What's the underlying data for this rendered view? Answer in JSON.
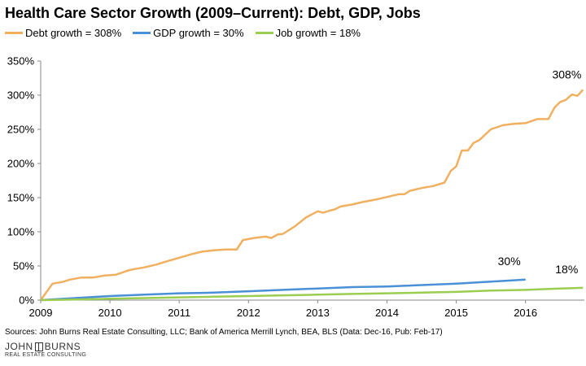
{
  "chart_data": {
    "type": "line",
    "title": "Health Care Sector Growth (2009–Current): Debt, GDP, Jobs",
    "xlabel": "",
    "ylabel": "",
    "x_ticks": [
      "2009",
      "2010",
      "2011",
      "2012",
      "2013",
      "2014",
      "2015",
      "2016"
    ],
    "y_ticks": [
      "0%",
      "50%",
      "100%",
      "150%",
      "200%",
      "250%",
      "300%",
      "350%"
    ],
    "xlim": [
      2009,
      2016.85
    ],
    "ylim": [
      0,
      350
    ],
    "legend_position": "top-left",
    "grid": false,
    "series": [
      {
        "name": "Debt growth = 308%",
        "color": "#F0B060",
        "end_label": "308%",
        "x": [
          2009,
          2009.17,
          2009.33,
          2009.42,
          2009.58,
          2009.75,
          2009.92,
          2010.08,
          2010.25,
          2010.33,
          2010.5,
          2010.67,
          2010.83,
          2011,
          2011.17,
          2011.33,
          2011.5,
          2011.67,
          2011.83,
          2011.92,
          2012.08,
          2012.25,
          2012.33,
          2012.42,
          2012.5,
          2012.67,
          2012.83,
          2013,
          2013.08,
          2013.17,
          2013.25,
          2013.33,
          2013.5,
          2013.67,
          2013.83,
          2014,
          2014.17,
          2014.25,
          2014.33,
          2014.5,
          2014.67,
          2014.83,
          2014.92,
          2015,
          2015.08,
          2015.17,
          2015.25,
          2015.33,
          2015.5,
          2015.67,
          2015.83,
          2016,
          2016.17,
          2016.33,
          2016.42,
          2016.5,
          2016.58,
          2016.67,
          2016.75,
          2016.83
        ],
        "values": [
          0,
          24,
          27,
          30,
          33,
          33,
          36,
          37,
          43,
          45,
          48,
          52,
          57,
          62,
          67,
          71,
          73,
          74,
          74,
          88,
          91,
          93,
          91,
          96,
          97,
          108,
          121,
          130,
          128,
          131,
          133,
          137,
          140,
          144,
          147,
          151,
          155,
          155,
          160,
          164,
          167,
          172,
          189,
          196,
          219,
          219,
          230,
          234,
          250,
          256,
          258,
          259,
          265,
          265,
          282,
          290,
          293,
          301,
          299,
          308
        ]
      },
      {
        "name": "GDP growth = 30%",
        "color": "#4A90D6",
        "end_label": "30%",
        "x": [
          2009,
          2009.5,
          2010,
          2010.5,
          2011,
          2011.5,
          2012,
          2012.5,
          2013,
          2013.5,
          2014,
          2014.5,
          2015,
          2015.5,
          2016
        ],
        "values": [
          0,
          3,
          6,
          8,
          10,
          11,
          13,
          15,
          17,
          19,
          20,
          22,
          24,
          27,
          30
        ]
      },
      {
        "name": "Job growth = 18%",
        "color": "#9ACD50",
        "end_label": "18%",
        "x": [
          2009,
          2009.5,
          2010,
          2010.5,
          2011,
          2011.5,
          2012,
          2012.5,
          2013,
          2013.5,
          2014,
          2014.5,
          2015,
          2015.5,
          2016,
          2016.5,
          2016.83
        ],
        "values": [
          0,
          1,
          2,
          3,
          4,
          5,
          6,
          7,
          8,
          9,
          10,
          11,
          12,
          14,
          15,
          17,
          18
        ]
      }
    ]
  },
  "footer": {
    "source": "Sources: John Burns Real Estate Consulting, LLC; Bank of America Merrill Lynch, BEA, BLS (Data: Dec-16, Pub: Feb-17)",
    "logo_left": "JOHN",
    "logo_right": "BURNS",
    "logo_sub": "REAL ESTATE CONSULTING"
  }
}
